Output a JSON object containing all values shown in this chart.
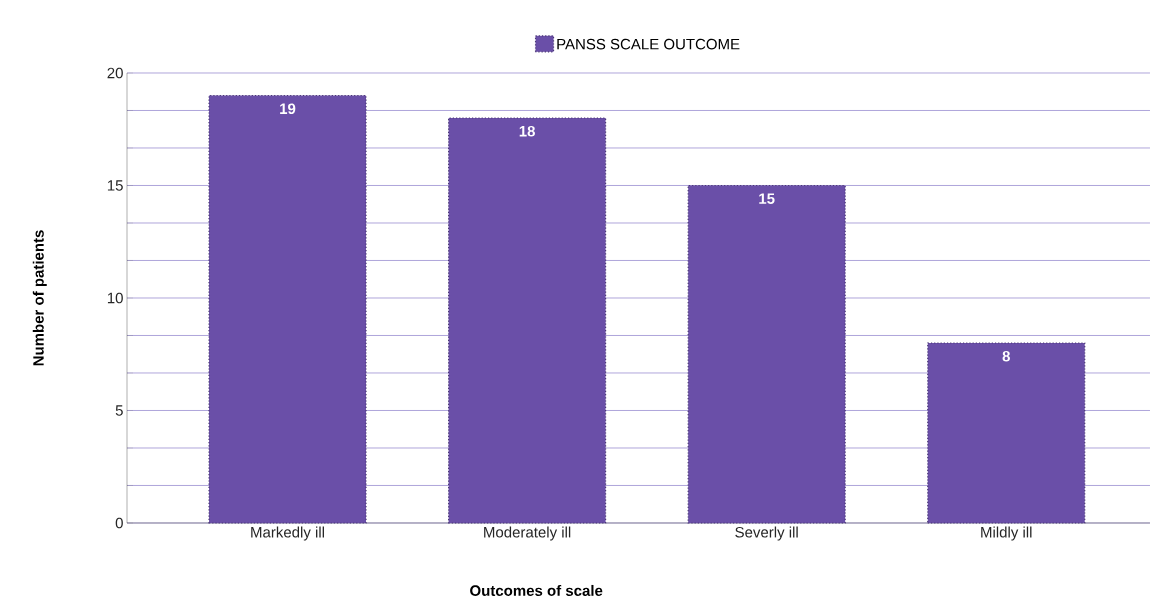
{
  "chart_data": {
    "type": "bar",
    "xlabel": "Outcomes of scale",
    "ylabel": "Number of patients",
    "categories": [
      "Markedly ill",
      "Moderately ill",
      "Severly ill",
      "Mildly ill"
    ],
    "series": [
      {
        "name": "PANSS SCALE OUTCOME",
        "color": "#6a4fa8",
        "values": [
          19,
          18,
          15,
          8
        ]
      }
    ],
    "ylim": [
      0,
      20
    ],
    "yticks": [
      0,
      {
        "value": 1.667,
        "label": null
      },
      {
        "value": 3.333,
        "label": null
      },
      5,
      {
        "value": 6.667,
        "label": null
      },
      {
        "value": 8.333,
        "label": null
      },
      10,
      {
        "value": 11.667,
        "label": null
      },
      {
        "value": 13.333,
        "label": null
      },
      15,
      {
        "value": 16.667,
        "label": null
      },
      {
        "value": 18.333,
        "label": null
      },
      20
    ],
    "grid": "y",
    "legend": "top",
    "data_labels": true
  }
}
